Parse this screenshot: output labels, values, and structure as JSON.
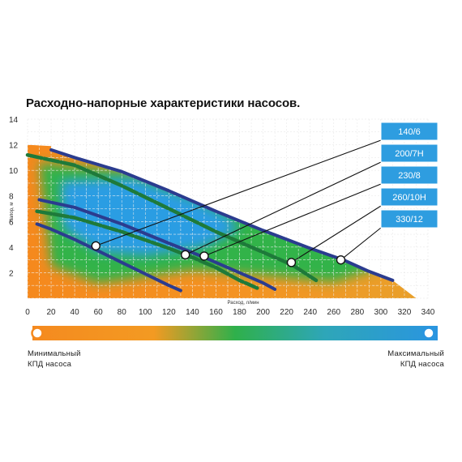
{
  "chart_data": {
    "type": "line",
    "title": "Расходно-напорные характеристики насосов.",
    "xlabel": "Расход, л/мин",
    "ylabel": "Напор, м",
    "xlim": [
      0,
      340
    ],
    "ylim": [
      0,
      14
    ],
    "x_ticks": [
      0,
      20,
      40,
      60,
      80,
      100,
      120,
      140,
      160,
      180,
      200,
      220,
      240,
      260,
      280,
      300,
      320,
      340
    ],
    "y_ticks": [
      2,
      4,
      6,
      8,
      10,
      12,
      14
    ],
    "grid": true,
    "legend_position": "right",
    "colors": {
      "orange": "#f58a1f",
      "green": "#2fb04b",
      "blue": "#2a9be0",
      "navy_curve": "#2b3c8f",
      "green_curve": "#1e7a3a",
      "legend_box": "#2e9de0"
    },
    "series": [
      {
        "name": "140/6",
        "color": "#2b3c8f",
        "x": [
          8,
          20,
          40,
          60,
          80,
          100,
          120,
          130
        ],
        "y": [
          5.8,
          5.4,
          4.6,
          3.7,
          2.8,
          1.9,
          1.0,
          0.6
        ]
      },
      {
        "name": "200/7Н",
        "color": "#1e7a3a",
        "x": [
          8,
          40,
          80,
          120,
          140,
          160,
          180,
          195
        ],
        "y": [
          6.8,
          6.3,
          5.2,
          3.9,
          3.2,
          2.4,
          1.4,
          0.8
        ]
      },
      {
        "name": "230/8",
        "color": "#2b3c8f",
        "x": [
          10,
          40,
          80,
          120,
          150,
          180,
          200,
          210
        ],
        "y": [
          7.7,
          7.1,
          5.8,
          4.3,
          3.2,
          2.0,
          1.2,
          0.7
        ]
      },
      {
        "name": "260/10Н",
        "color": "#1e7a3a",
        "x": [
          0,
          40,
          80,
          120,
          160,
          200,
          225,
          245
        ],
        "y": [
          11.2,
          10.4,
          8.8,
          7.0,
          5.2,
          3.6,
          2.6,
          1.4
        ]
      },
      {
        "name": "330/12",
        "color": "#2b3c8f",
        "x": [
          20,
          40,
          80,
          120,
          160,
          200,
          240,
          268,
          290,
          310
        ],
        "y": [
          11.6,
          11.0,
          9.9,
          8.4,
          6.8,
          5.3,
          3.9,
          3.0,
          2.1,
          1.4
        ]
      }
    ],
    "markers": [
      {
        "series": "140/6",
        "x": 58,
        "y": 4.1
      },
      {
        "series": "200/7Н",
        "x": 134,
        "y": 3.4
      },
      {
        "series": "230/8",
        "x": 150,
        "y": 3.3
      },
      {
        "series": "260/10Н",
        "x": 224,
        "y": 2.8
      },
      {
        "series": "330/12",
        "x": 266,
        "y": 3.0
      }
    ],
    "efficiency_scale": {
      "min_label_line1": "Минимальный",
      "min_label_line2": "КПД насоса",
      "max_label_line1": "Максимальный",
      "max_label_line2": "КПД насоса"
    }
  }
}
